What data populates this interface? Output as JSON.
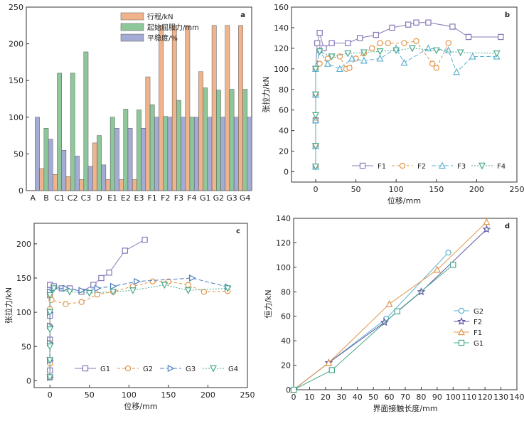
{
  "chart_data": [
    {
      "panel": "a",
      "type": "bar",
      "categories": [
        "A",
        "B",
        "C1",
        "C2",
        "C3",
        "D",
        "E1",
        "E2",
        "E3",
        "F1",
        "F2",
        "F3",
        "F4",
        "G1",
        "G2",
        "G3",
        "G4"
      ],
      "series": [
        {
          "name": "行程/kN",
          "color": "#f0b48c",
          "values": [
            null,
            30,
            22,
            19,
            15,
            65,
            15,
            15,
            15,
            155,
            225,
            225,
            225,
            162,
            225,
            225,
            225
          ]
        },
        {
          "name": "起始屈服力/mm",
          "color": "#8ec79a",
          "values": [
            null,
            85,
            160,
            160,
            189,
            75,
            100,
            111,
            110,
            117,
            101,
            123,
            100,
            140,
            137,
            138,
            138
          ]
        },
        {
          "name": "平稳度/%",
          "color": "#a4abd4",
          "values": [
            100,
            70,
            55,
            47,
            33,
            35,
            85,
            85,
            85,
            100,
            100,
            100,
            100,
            100,
            100,
            100,
            100
          ]
        }
      ],
      "ylim": [
        0,
        250
      ],
      "yticks": [
        0,
        50,
        100,
        150,
        200,
        250
      ],
      "legend": "top-center"
    },
    {
      "panel": "b",
      "type": "line",
      "xlabel": "位移/mm",
      "ylabel": "张拉力/kN",
      "xlim": [
        -30,
        250
      ],
      "ylim": [
        -10,
        160
      ],
      "xticks": [
        0,
        50,
        100,
        150,
        200,
        250
      ],
      "yticks": [
        0,
        20,
        40,
        60,
        80,
        100,
        120,
        140,
        160
      ],
      "legend": "bottom",
      "series": [
        {
          "name": "F1",
          "color": "#8878b8",
          "marker": "square",
          "dash": "",
          "x": [
            0,
            0,
            0,
            0,
            0,
            2,
            5,
            10,
            20,
            40,
            55,
            75,
            95,
            115,
            125,
            140,
            170,
            190,
            230
          ],
          "y": [
            5,
            25,
            50,
            75,
            100,
            125,
            135,
            120,
            125,
            125,
            130,
            133,
            140,
            143,
            145,
            145,
            141,
            131,
            131
          ]
        },
        {
          "name": "F2",
          "color": "#e0954a",
          "marker": "circle",
          "dash": "4,3",
          "x": [
            0,
            0,
            0,
            0,
            0,
            5,
            15,
            30,
            38,
            42,
            50,
            60,
            70,
            80,
            90,
            110,
            125,
            145,
            150,
            165
          ],
          "y": [
            5,
            25,
            50,
            75,
            100,
            105,
            110,
            112,
            100,
            101,
            110,
            115,
            120,
            125,
            125,
            125,
            127,
            105,
            101,
            125
          ]
        },
        {
          "name": "F3",
          "color": "#5eb0d0",
          "marker": "triangle",
          "dash": "6,3",
          "x": [
            0,
            0,
            0,
            0,
            0,
            5,
            15,
            30,
            45,
            60,
            80,
            100,
            110,
            140,
            165,
            175,
            195,
            225
          ],
          "y": [
            5,
            25,
            50,
            75,
            100,
            118,
            105,
            100,
            110,
            108,
            110,
            120,
            106,
            120,
            118,
            97,
            112,
            112
          ]
        },
        {
          "name": "F4",
          "color": "#4aaa8a",
          "marker": "invtriangle",
          "dash": "2,2",
          "x": [
            0,
            0,
            0,
            0,
            0,
            5,
            20,
            40,
            60,
            80,
            100,
            120,
            150,
            180,
            225
          ],
          "y": [
            5,
            25,
            55,
            75,
            100,
            117,
            112,
            115,
            116,
            117,
            118,
            120,
            118,
            116,
            115
          ]
        }
      ]
    },
    {
      "panel": "c",
      "type": "line",
      "xlabel": "位移/mm",
      "ylabel": "张拉力/kN",
      "xlim": [
        -20,
        250
      ],
      "ylim": [
        -10,
        230
      ],
      "xticks": [
        0,
        50,
        100,
        150,
        200,
        250
      ],
      "yticks": [
        0,
        50,
        100,
        150,
        200
      ],
      "legend": "bottom",
      "series": [
        {
          "name": "G1",
          "color": "#8878b8",
          "marker": "square",
          "dash": "",
          "x": [
            0,
            0,
            0,
            0,
            0,
            0,
            0,
            0,
            5,
            15,
            25,
            40,
            55,
            65,
            75,
            95,
            120
          ],
          "y": [
            5,
            15,
            30,
            60,
            95,
            125,
            140,
            140,
            138,
            135,
            135,
            130,
            140,
            150,
            158,
            190,
            206
          ]
        },
        {
          "name": "G2",
          "color": "#e0954a",
          "marker": "circle",
          "dash": "4,3",
          "x": [
            0,
            0,
            0,
            0,
            0,
            0,
            2,
            20,
            40,
            60,
            80,
            105,
            130,
            150,
            175,
            195,
            225
          ],
          "y": [
            5,
            25,
            55,
            80,
            105,
            125,
            118,
            112,
            115,
            126,
            130,
            138,
            145,
            145,
            140,
            130,
            131
          ]
        },
        {
          "name": "G3",
          "color": "#4a7cc0",
          "marker": "righttriangle",
          "dash": "6,3",
          "x": [
            0,
            0,
            0,
            0,
            0,
            0,
            5,
            20,
            40,
            60,
            80,
            110,
            180,
            225
          ],
          "y": [
            5,
            30,
            55,
            80,
            100,
            130,
            135,
            135,
            132,
            135,
            138,
            145,
            150,
            137
          ]
        },
        {
          "name": "G4",
          "color": "#4aaa8a",
          "marker": "invtriangle",
          "dash": "2,2",
          "x": [
            0,
            0,
            0,
            0,
            0,
            0,
            5,
            25,
            50,
            80,
            105,
            145,
            175,
            225
          ],
          "y": [
            5,
            30,
            50,
            75,
            100,
            125,
            135,
            130,
            128,
            130,
            132,
            140,
            132,
            135
          ]
        }
      ]
    },
    {
      "panel": "d",
      "type": "line",
      "xlabel": "界面接触长度/mm",
      "ylabel": "恒力/kN",
      "xlim": [
        0,
        140
      ],
      "ylim": [
        0,
        140
      ],
      "xticks": [
        0,
        10,
        20,
        30,
        40,
        50,
        60,
        70,
        80,
        90,
        100,
        110,
        120,
        130,
        140
      ],
      "yticks": [
        0,
        20,
        40,
        60,
        80,
        100,
        120,
        140
      ],
      "legend": "left-middle",
      "series": [
        {
          "name": "G2",
          "color": "#5eb0d0",
          "marker": "circle",
          "x": [
            0,
            58,
            97
          ],
          "y": [
            0,
            58,
            112
          ]
        },
        {
          "name": "F2",
          "color": "#5a55a0",
          "marker": "star",
          "x": [
            0,
            22,
            57,
            80,
            121
          ],
          "y": [
            0,
            22,
            55,
            80,
            131
          ]
        },
        {
          "name": "F1",
          "color": "#e0954a",
          "marker": "triangle",
          "x": [
            0,
            22,
            60,
            90,
            121
          ],
          "y": [
            0,
            22,
            70,
            98,
            137
          ]
        },
        {
          "name": "G1",
          "color": "#4aaa8a",
          "marker": "square",
          "x": [
            0,
            24,
            65,
            100
          ],
          "y": [
            0,
            16,
            64,
            102
          ]
        }
      ]
    }
  ]
}
